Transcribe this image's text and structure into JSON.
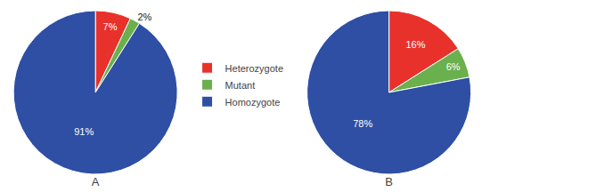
{
  "chart_data": [
    {
      "type": "pie",
      "title": "A",
      "categories": [
        "Heterozygote",
        "Mutant",
        "Homozygote"
      ],
      "values": [
        7,
        2,
        91
      ],
      "value_labels": [
        "7%",
        "2%",
        "91%"
      ],
      "colors": [
        "#e8312a",
        "#6ab04c",
        "#2e4fa3"
      ],
      "data_labels": true,
      "legend": "right"
    },
    {
      "type": "pie",
      "title": "B",
      "categories": [
        "Heterozygote",
        "Mutant",
        "Homozygote"
      ],
      "values": [
        16,
        6,
        78
      ],
      "value_labels": [
        "16%",
        "6%",
        "78%"
      ],
      "colors": [
        "#e8312a",
        "#6ab04c",
        "#2e4fa3"
      ],
      "data_labels": true,
      "legend": "right"
    }
  ]
}
